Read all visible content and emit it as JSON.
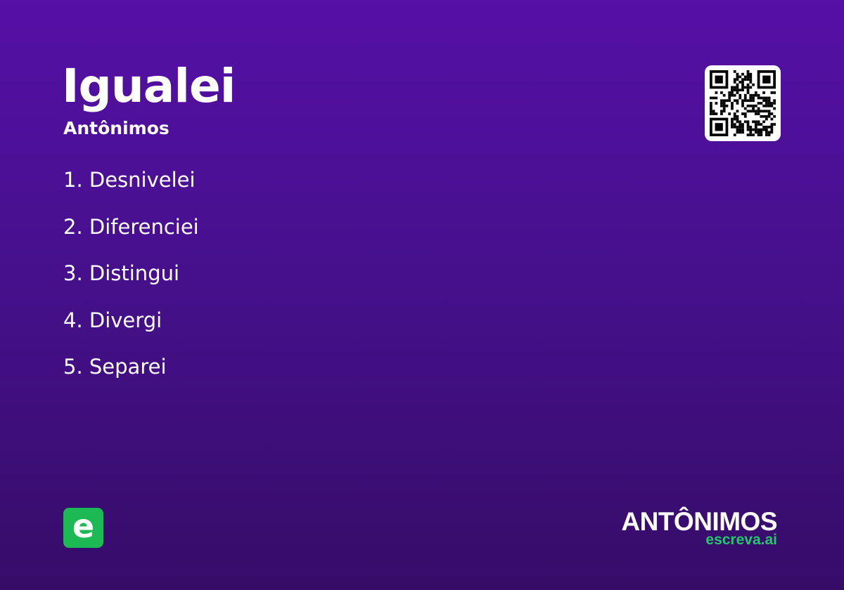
{
  "card": {
    "title": "Igualei",
    "subtitle": "Antônimos",
    "items": [
      "1. Desnivelei",
      "2. Diferenciei",
      "3. Distingui",
      "4. Divergi",
      "5. Separei"
    ]
  },
  "qr": {
    "icon": "qr-code-icon"
  },
  "logo": {
    "letter": "e",
    "color": "#1db954"
  },
  "brand": {
    "word": "ANTÔNIMOS",
    "site": "escreva.ai",
    "site_color": "#20c96a"
  },
  "colors": {
    "background_top": "#5510a6",
    "background_bottom": "#360c68"
  }
}
